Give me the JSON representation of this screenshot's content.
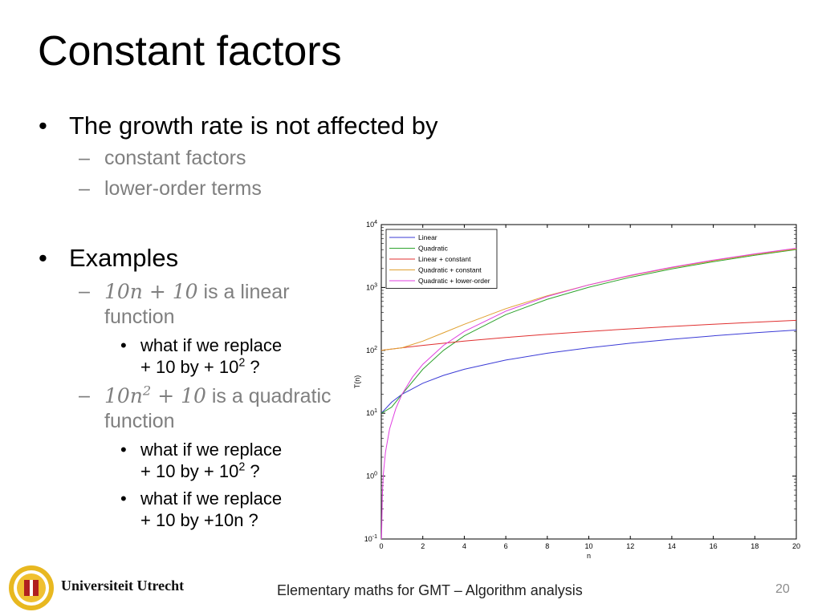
{
  "slide": {
    "title": "Constant factors",
    "bullet1": "The growth rate is not affected by",
    "sub1a": "constant factors",
    "sub1b": "lower-order terms",
    "bullet2": "Examples",
    "ex1_math": "10𝑛 + 10",
    "ex1_text_a": " is a linear",
    "ex1_text_b": "function",
    "ex1_q1_line1": "what if we replace",
    "ex1_q1_line2": "+ 10 by + 10",
    "ex1_q1_sup": "2",
    "ex1_q1_tail": " ?",
    "ex2_math_a": "10𝑛",
    "ex2_math_sup": "2",
    "ex2_math_b": " + 10",
    "ex2_text_a": " is a quadratic",
    "ex2_text_b": "function",
    "ex2_q1_line1": "what if we replace",
    "ex2_q1_line2": "+ 10 by + 10",
    "ex2_q1_sup": "2",
    "ex2_q1_tail": " ?",
    "ex2_q2_line1": "what if we replace",
    "ex2_q2_line2": "+ 10 by +10n ?"
  },
  "footer": {
    "text": "Elementary maths for GMT – Algorithm analysis",
    "page": "20",
    "university": "Universiteit Utrecht"
  },
  "chart_data": {
    "type": "line",
    "xlabel": "n",
    "ylabel": "T(n)",
    "yscale": "log",
    "xlim": [
      0,
      20
    ],
    "ylim": [
      0.1,
      10000
    ],
    "xticks": [
      0,
      2,
      4,
      6,
      8,
      10,
      12,
      14,
      16,
      18,
      20
    ],
    "yticks": [
      {
        "value": 0.1,
        "base": "10",
        "exp": "-1"
      },
      {
        "value": 1,
        "base": "10",
        "exp": "0"
      },
      {
        "value": 10,
        "base": "10",
        "exp": "1"
      },
      {
        "value": 100,
        "base": "10",
        "exp": "2"
      },
      {
        "value": 1000,
        "base": "10",
        "exp": "3"
      },
      {
        "value": 10000,
        "base": "10",
        "exp": "4"
      }
    ],
    "legend_position": "top-left",
    "series": [
      {
        "name": "Linear",
        "color": "#3b3bd6",
        "x": [
          0.01,
          0.5,
          1,
          2,
          3,
          4,
          6,
          8,
          10,
          12,
          14,
          16,
          18,
          20
        ],
        "y": [
          10.1,
          15,
          20,
          30,
          40,
          50,
          70,
          90,
          110,
          130,
          150,
          170,
          190,
          210
        ]
      },
      {
        "name": "Quadratic",
        "color": "#2ea32e",
        "x": [
          0.01,
          0.5,
          1,
          2,
          3,
          4,
          6,
          8,
          10,
          12,
          14,
          16,
          18,
          20
        ],
        "y": [
          10,
          12.5,
          20,
          50,
          100,
          170,
          370,
          650,
          1010,
          1450,
          1970,
          2570,
          3250,
          4010
        ]
      },
      {
        "name": "Linear + constant",
        "color": "#e03030",
        "x": [
          0,
          1,
          2,
          4,
          6,
          8,
          10,
          12,
          14,
          16,
          18,
          20
        ],
        "y": [
          100,
          110,
          120,
          140,
          160,
          180,
          200,
          220,
          240,
          260,
          280,
          300
        ]
      },
      {
        "name": "Quadratic + constant",
        "color": "#e0a030",
        "x": [
          0,
          1,
          2,
          3,
          4,
          6,
          8,
          10,
          12,
          14,
          16,
          18,
          20
        ],
        "y": [
          100,
          110,
          140,
          190,
          260,
          460,
          740,
          1100,
          1540,
          2060,
          2660,
          3340,
          4100
        ]
      },
      {
        "name": "Quadratic + lower-order",
        "color": "#e040e0",
        "x": [
          0.01,
          0.05,
          0.1,
          0.2,
          0.4,
          0.7,
          1,
          1.5,
          2,
          3,
          4,
          6,
          8,
          10,
          12,
          14,
          16,
          18,
          20
        ],
        "y": [
          0.1,
          0.5,
          1.1,
          2.4,
          5.6,
          11.9,
          20,
          37.5,
          60,
          120,
          200,
          420,
          720,
          1100,
          1560,
          2100,
          2720,
          3420,
          4200
        ]
      }
    ]
  }
}
